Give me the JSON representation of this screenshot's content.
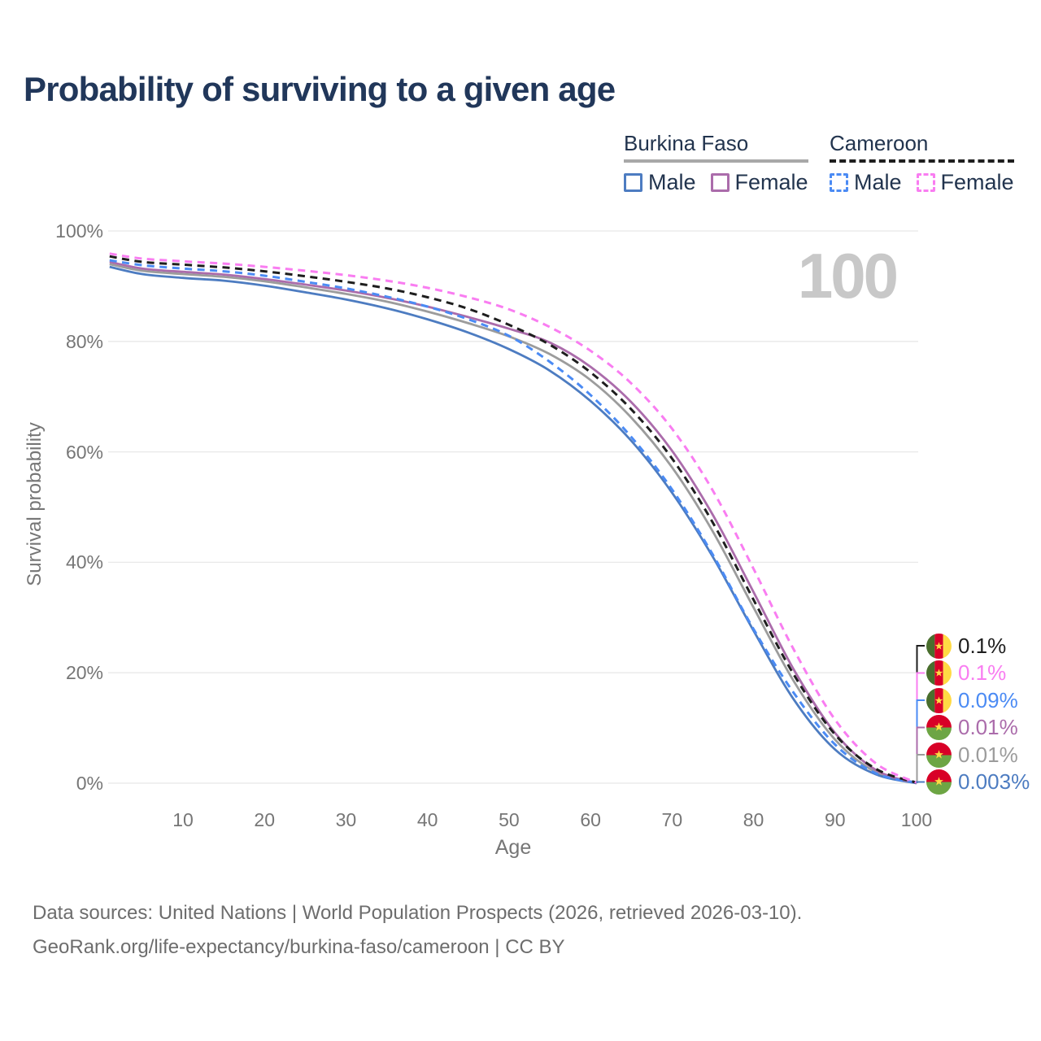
{
  "title": "Probability of surviving to a given age",
  "watermark": "100",
  "legend": {
    "groups": [
      {
        "name": "Burkina Faso",
        "line_style": "solid",
        "underline_color": "#a8a8a8",
        "items": [
          {
            "label": "Male",
            "color": "#4d7cc1"
          },
          {
            "label": "Female",
            "color": "#ab6cab"
          }
        ]
      },
      {
        "name": "Cameroon",
        "line_style": "dashed",
        "underline_color": "#1e1e1e",
        "items": [
          {
            "label": "Male",
            "color": "#4b8bf4"
          },
          {
            "label": "Female",
            "color": "#f97df1"
          }
        ]
      }
    ]
  },
  "chart_data": {
    "type": "line",
    "title": "Probability of surviving to a given age",
    "xlabel": "Age",
    "ylabel": "Survival probability",
    "xlim": [
      1,
      100
    ],
    "ylim": [
      0,
      100
    ],
    "grid": "horizontal",
    "hovered_age": "100",
    "xticks": [
      10,
      20,
      30,
      40,
      50,
      60,
      70,
      80,
      90,
      100
    ],
    "yticks": [
      {
        "value": 100,
        "label": "100%"
      },
      {
        "value": 80,
        "label": "80%"
      },
      {
        "value": 60,
        "label": "60%"
      },
      {
        "value": 40,
        "label": "40%"
      },
      {
        "value": 20,
        "label": "20%"
      },
      {
        "value": 0,
        "label": "0%"
      }
    ],
    "ages": [
      1,
      5,
      10,
      15,
      20,
      25,
      30,
      35,
      40,
      45,
      50,
      55,
      60,
      65,
      70,
      75,
      80,
      85,
      90,
      95,
      100
    ],
    "series": [
      {
        "id": "bf-total",
        "name": "Burkina Faso (all)",
        "country": "Burkina Faso",
        "sex": "All",
        "color": "#9c9c9c",
        "dashed": false,
        "flag": "burkina-faso",
        "label_row": 4,
        "end_label": "0.01%",
        "values": [
          94.0,
          92.8,
          92.2,
          91.7,
          90.9,
          89.8,
          88.6,
          87.2,
          85.4,
          83.3,
          80.9,
          77.7,
          73.0,
          66.2,
          57.2,
          45.6,
          31.8,
          18.3,
          7.9,
          2.0,
          0.01
        ]
      },
      {
        "id": "bf-male",
        "name": "Burkina Faso Male",
        "country": "Burkina Faso",
        "sex": "Male",
        "color": "#4d7cc1",
        "dashed": false,
        "flag": "burkina-faso",
        "label_row": 5,
        "end_label": "0.003%",
        "values": [
          93.5,
          92.2,
          91.5,
          91.0,
          90.1,
          88.9,
          87.6,
          86.0,
          84.0,
          81.6,
          78.6,
          74.7,
          69.2,
          62.0,
          52.6,
          41.0,
          27.6,
          15.0,
          6.1,
          1.6,
          0.003
        ]
      },
      {
        "id": "bf-female",
        "name": "Burkina Faso Female",
        "country": "Burkina Faso",
        "sex": "Female",
        "color": "#ab6cab",
        "dashed": false,
        "flag": "burkina-faso",
        "label_row": 3,
        "end_label": "0.01%",
        "values": [
          94.4,
          93.2,
          92.6,
          92.1,
          91.3,
          90.3,
          89.2,
          87.9,
          86.3,
          84.4,
          82.3,
          79.8,
          75.4,
          69.0,
          60.2,
          48.6,
          34.6,
          20.4,
          9.1,
          2.4,
          0.01
        ]
      },
      {
        "id": "cm-male",
        "name": "Cameroon Male",
        "country": "Cameroon",
        "sex": "Male",
        "color": "#4b8bf4",
        "dashed": true,
        "flag": "cameroon",
        "label_row": 2,
        "end_label": "0.09%",
        "values": [
          94.7,
          93.8,
          93.2,
          92.7,
          91.9,
          90.8,
          89.6,
          88.1,
          86.3,
          84.0,
          81.0,
          76.3,
          70.3,
          62.7,
          53.2,
          41.4,
          27.9,
          16.2,
          7.0,
          1.8,
          0.09
        ]
      },
      {
        "id": "cm-total",
        "name": "Cameroon (all)",
        "country": "Cameroon",
        "sex": "All",
        "color": "#1e1e1e",
        "dashed": true,
        "flag": "cameroon",
        "label_row": 0,
        "end_label": "0.1%",
        "values": [
          95.4,
          94.4,
          93.9,
          93.4,
          92.7,
          91.8,
          90.8,
          89.6,
          88.0,
          85.9,
          83.0,
          79.4,
          74.4,
          67.7,
          58.8,
          47.2,
          33.2,
          19.5,
          8.8,
          2.6,
          0.1
        ]
      },
      {
        "id": "cm-female",
        "name": "Cameroon Female",
        "country": "Cameroon",
        "sex": "Female",
        "color": "#f97df1",
        "dashed": true,
        "flag": "cameroon",
        "label_row": 1,
        "end_label": "0.1%",
        "values": [
          95.9,
          95.0,
          94.5,
          94.1,
          93.5,
          92.8,
          92.0,
          91.0,
          89.7,
          88.0,
          85.8,
          82.6,
          78.3,
          72.4,
          64.2,
          53.0,
          38.8,
          24.0,
          11.5,
          3.6,
          0.1
        ]
      }
    ]
  },
  "footer": {
    "line1": "Data sources: United Nations | World Population Prospects (2026, retrieved 2026-03-10).",
    "line2": "GeoRank.org/life-expectancy/burkina-faso/cameroon | CC BY"
  }
}
